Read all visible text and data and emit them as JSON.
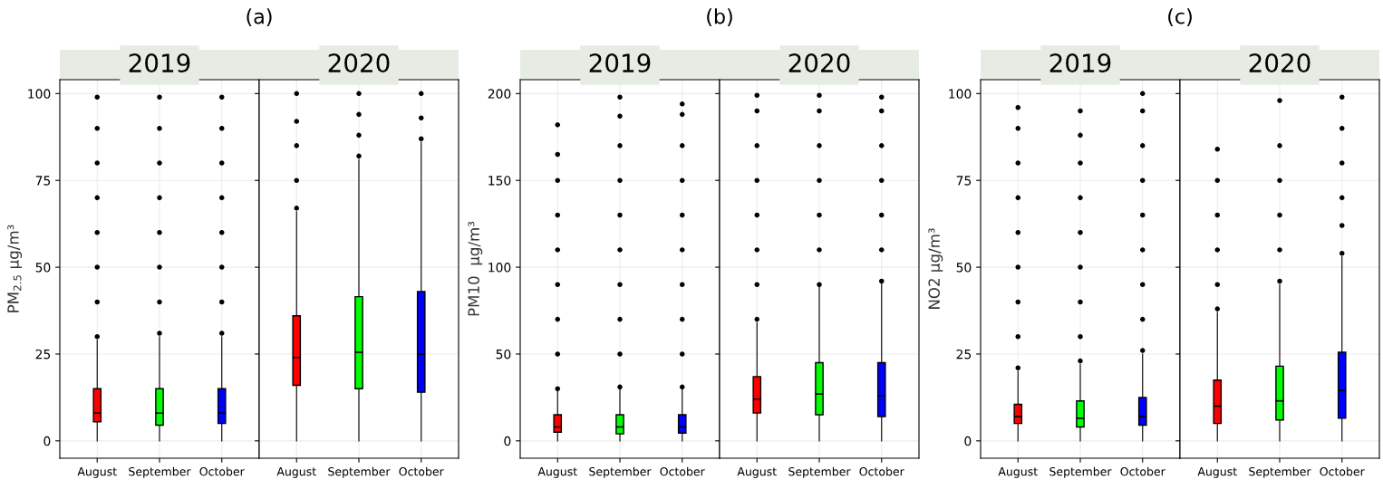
{
  "chart_data": [
    {
      "type": "box",
      "title": "2019",
      "annotations": [
        "(a)"
      ],
      "ylabel": "PM$_{2.5}$ μg/m³",
      "categories": [
        "August",
        "September",
        "October"
      ],
      "colors": [
        "#ff0000",
        "#00ff00",
        "#0000ff"
      ],
      "boxes": [
        {
          "low": 0,
          "q1": 5.5,
          "median": 8,
          "q3": 15,
          "high": 29,
          "outliers": [
            30,
            40,
            50,
            60,
            70,
            80,
            90,
            99
          ]
        },
        {
          "low": 0,
          "q1": 4.5,
          "median": 8,
          "q3": 15,
          "high": 30,
          "outliers": [
            31,
            40,
            50,
            60,
            70,
            80,
            90,
            99
          ]
        },
        {
          "low": 0,
          "q1": 5,
          "median": 8,
          "q3": 15,
          "high": 30,
          "outliers": [
            31,
            40,
            50,
            60,
            70,
            80,
            90,
            99
          ]
        }
      ],
      "ylim": [
        -5,
        104
      ],
      "yticks": [
        0,
        25,
        50,
        75,
        100
      ],
      "grid": true
    },
    {
      "type": "box",
      "title": "2020",
      "categories": [
        "August",
        "September",
        "October"
      ],
      "colors": [
        "#ff0000",
        "#00ff00",
        "#0000ff"
      ],
      "boxes": [
        {
          "low": 0,
          "q1": 16,
          "median": 24,
          "q3": 36,
          "high": 66,
          "outliers": [
            67,
            75,
            85,
            92,
            100
          ]
        },
        {
          "low": 0,
          "q1": 15,
          "median": 25.5,
          "q3": 41.5,
          "high": 81,
          "outliers": [
            82,
            88,
            94,
            100
          ]
        },
        {
          "low": 0,
          "q1": 14,
          "median": 25,
          "q3": 43,
          "high": 86,
          "outliers": [
            87,
            93,
            100
          ]
        }
      ],
      "ylim": [
        -5,
        104
      ],
      "yticks": [
        0,
        25,
        50,
        75,
        100
      ],
      "grid": true,
      "tick_labels": "x"
    },
    {
      "type": "box",
      "title": "2019",
      "annotations": [
        "(b)"
      ],
      "ylabel": "PM10  μg/m³",
      "categories": [
        "August",
        "September",
        "October"
      ],
      "colors": [
        "#ff0000",
        "#00ff00",
        "#0000ff"
      ],
      "boxes": [
        {
          "low": 0,
          "q1": 5,
          "median": 8,
          "q3": 15,
          "high": 29,
          "outliers": [
            30,
            50,
            70,
            90,
            110,
            130,
            150,
            165,
            182
          ]
        },
        {
          "low": 0,
          "q1": 4,
          "median": 8,
          "q3": 15,
          "high": 30,
          "outliers": [
            31,
            50,
            70,
            90,
            110,
            130,
            150,
            170,
            187,
            198
          ]
        },
        {
          "low": 0,
          "q1": 4.5,
          "median": 8,
          "q3": 15,
          "high": 30,
          "outliers": [
            31,
            50,
            70,
            90,
            110,
            130,
            150,
            170,
            188,
            194
          ]
        }
      ],
      "ylim": [
        -10,
        208
      ],
      "yticks": [
        0,
        50,
        100,
        150,
        200
      ],
      "grid": true
    },
    {
      "type": "box",
      "title": "2020",
      "categories": [
        "August",
        "September",
        "October"
      ],
      "colors": [
        "#ff0000",
        "#00ff00",
        "#0000ff"
      ],
      "boxes": [
        {
          "low": 0,
          "q1": 16,
          "median": 24,
          "q3": 37,
          "high": 68,
          "outliers": [
            70,
            90,
            110,
            130,
            150,
            170,
            190,
            199
          ]
        },
        {
          "low": 0,
          "q1": 15,
          "median": 27,
          "q3": 45,
          "high": 89,
          "outliers": [
            90,
            110,
            130,
            150,
            170,
            190,
            199
          ]
        },
        {
          "low": 0,
          "q1": 14,
          "median": 26,
          "q3": 45,
          "high": 91,
          "outliers": [
            92,
            110,
            130,
            150,
            170,
            190,
            198
          ]
        }
      ],
      "ylim": [
        -10,
        208
      ],
      "yticks": [
        0,
        50,
        100,
        150,
        200
      ],
      "grid": true,
      "tick_labels": "x"
    },
    {
      "type": "box",
      "title": "2019",
      "annotations": [
        "(c)"
      ],
      "ylabel": "NO2 μg/m³",
      "categories": [
        "August",
        "September",
        "October"
      ],
      "colors": [
        "#ff0000",
        "#00ff00",
        "#0000ff"
      ],
      "boxes": [
        {
          "low": 0,
          "q1": 5,
          "median": 7,
          "q3": 10.5,
          "high": 20,
          "outliers": [
            21,
            30,
            40,
            50,
            60,
            70,
            80,
            90,
            96
          ]
        },
        {
          "low": 0,
          "q1": 4,
          "median": 6.5,
          "q3": 11.5,
          "high": 22,
          "outliers": [
            23,
            30,
            40,
            50,
            60,
            70,
            80,
            88,
            95
          ]
        },
        {
          "low": 0,
          "q1": 4.5,
          "median": 7,
          "q3": 12.5,
          "high": 25,
          "outliers": [
            26,
            35,
            45,
            55,
            65,
            75,
            85,
            95,
            100
          ]
        }
      ],
      "ylim": [
        -5,
        104
      ],
      "yticks": [
        0,
        25,
        50,
        75,
        100
      ],
      "grid": true
    },
    {
      "type": "box",
      "title": "2020",
      "categories": [
        "August",
        "September",
        "October"
      ],
      "colors": [
        "#ff0000",
        "#00ff00",
        "#0000ff"
      ],
      "boxes": [
        {
          "low": 0,
          "q1": 5,
          "median": 10,
          "q3": 17.5,
          "high": 37,
          "outliers": [
            38,
            45,
            55,
            65,
            75,
            84
          ]
        },
        {
          "low": 0,
          "q1": 6,
          "median": 11.5,
          "q3": 21.5,
          "high": 45,
          "outliers": [
            46,
            55,
            65,
            75,
            85,
            98
          ]
        },
        {
          "low": 0,
          "q1": 6.5,
          "median": 14.5,
          "q3": 25.5,
          "high": 53,
          "outliers": [
            54,
            62,
            70,
            80,
            90,
            99
          ]
        }
      ],
      "ylim": [
        -5,
        104
      ],
      "yticks": [
        0,
        25,
        50,
        75,
        100
      ],
      "grid": true,
      "tick_labels": "x"
    }
  ]
}
